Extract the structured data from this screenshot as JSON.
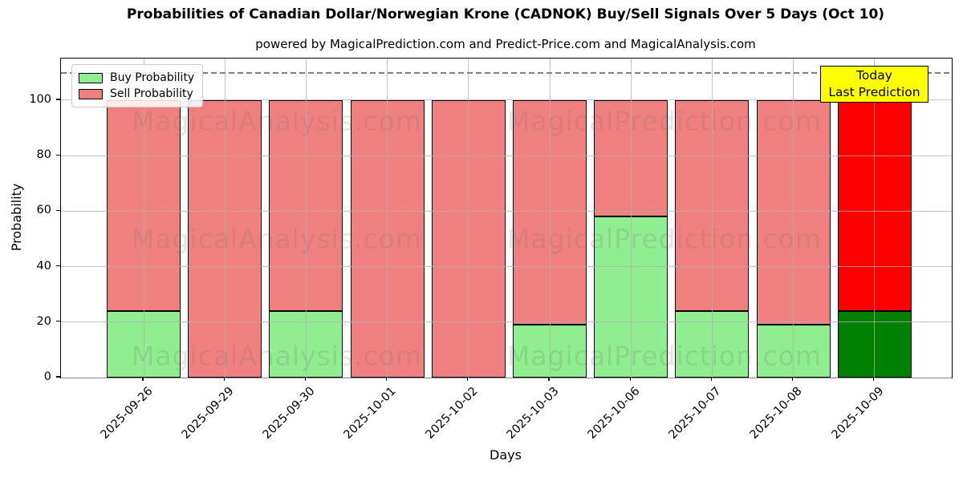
{
  "chart_data": {
    "type": "bar",
    "stacked": true,
    "title": "Probabilities of Canadian Dollar/Norwegian Krone (CADNOK) Buy/Sell Signals Over 5 Days (Oct 10)",
    "subtitle": "powered by MagicalPrediction.com and Predict-Price.com and MagicalAnalysis.com",
    "xlabel": "Days",
    "ylabel": "Probability",
    "ylim": [
      0,
      115
    ],
    "yticks": [
      0,
      20,
      40,
      60,
      80,
      100
    ],
    "grid": true,
    "grid_color": "#B0B0B0",
    "categories": [
      "2025-09-26",
      "2025-09-29",
      "2025-09-30",
      "2025-10-01",
      "2025-10-02",
      "2025-10-03",
      "2025-10-06",
      "2025-10-07",
      "2025-10-08",
      "2025-10-09"
    ],
    "series": [
      {
        "name": "Buy Probability",
        "color": "#90EE90",
        "values": [
          24,
          0,
          24,
          0,
          0,
          19,
          58,
          24,
          19,
          24
        ]
      },
      {
        "name": "Sell Probability",
        "color": "#F08080",
        "values": [
          76,
          100,
          76,
          100,
          100,
          81,
          42,
          76,
          81,
          76
        ]
      }
    ],
    "last_bar_colors": [
      "#008000",
      "#FF0000"
    ],
    "bar_edge_color": "#000000",
    "dashed_line": {
      "y": 110,
      "color": "#7F7F7F"
    },
    "legend": {
      "position": "upper-left"
    },
    "annotation": {
      "lines": [
        "Today",
        "Last Prediction"
      ],
      "bg_color": "#FFFF00",
      "border_color": "#000000"
    },
    "watermarks": [
      "MagicalAnalysis.com",
      "MagicalPrediction.com"
    ]
  }
}
